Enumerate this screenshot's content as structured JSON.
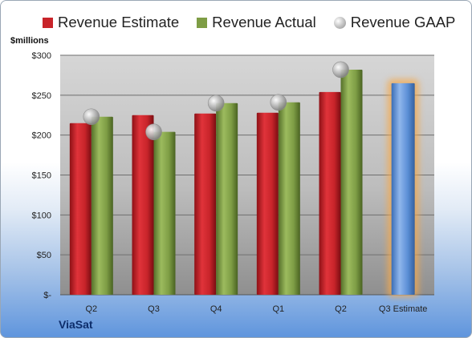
{
  "chart_data": {
    "type": "bar",
    "ylabel": "$millions",
    "company": "ViaSat",
    "categories": [
      "Q2",
      "Q3",
      "Q4",
      "Q1",
      "Q2",
      "Q3 Estimate"
    ],
    "ylim": [
      0,
      300
    ],
    "yticks": [
      0,
      50,
      100,
      150,
      200,
      250,
      300
    ],
    "ytick_labels": [
      "$-",
      "$50",
      "$100",
      "$150",
      "$200",
      "$250",
      "$300"
    ],
    "grid": true,
    "legend_position": "top",
    "series": [
      {
        "name": "Revenue Estimate",
        "type": "bar",
        "values": [
          215,
          225,
          227,
          228,
          254,
          null
        ],
        "color": "#c8242a"
      },
      {
        "name": "Revenue Actual",
        "type": "bar",
        "values": [
          223,
          204,
          240,
          241,
          282,
          null
        ],
        "color": "#7e9d45"
      },
      {
        "name": "Revenue GAAP",
        "type": "marker",
        "values": [
          223,
          204,
          240,
          241,
          282,
          null
        ],
        "color": "#b8b8b8"
      }
    ],
    "forecast": {
      "category": "Q3 Estimate",
      "value": 265,
      "color": "#5b8fd6"
    }
  }
}
